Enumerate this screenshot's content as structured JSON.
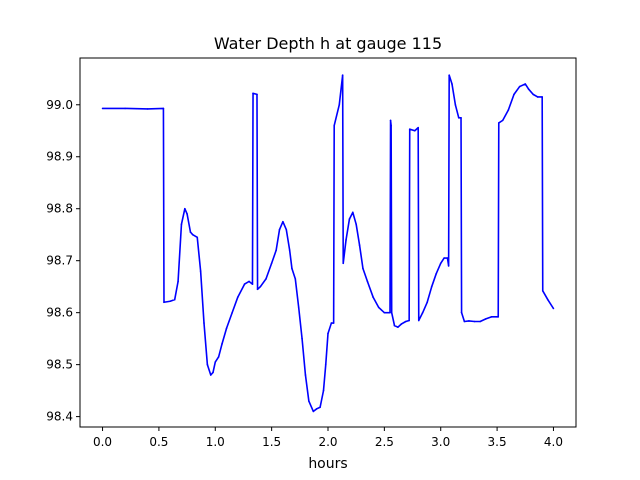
{
  "chart_data": {
    "type": "line",
    "title": "Water Depth h at gauge 115",
    "xlabel": "hours",
    "ylabel": "",
    "xlim": [
      -0.2,
      4.2
    ],
    "ylim": [
      98.38,
      99.09
    ],
    "xticks": [
      0.0,
      0.5,
      1.0,
      1.5,
      2.0,
      2.5,
      3.0,
      3.5,
      4.0
    ],
    "xtick_labels": [
      "0.0",
      "0.5",
      "1.0",
      "1.5",
      "2.0",
      "2.5",
      "3.0",
      "3.5",
      "4.0"
    ],
    "yticks": [
      98.4,
      98.5,
      98.6,
      98.7,
      98.8,
      98.9,
      99.0
    ],
    "ytick_labels": [
      "98.4",
      "98.5",
      "98.6",
      "98.7",
      "98.8",
      "98.9",
      "99.0"
    ],
    "grid": false,
    "line_color": "#0000ff",
    "series": [
      {
        "x": [
          0.0,
          0.2,
          0.4,
          0.54,
          0.545,
          0.6,
          0.64,
          0.67,
          0.7,
          0.73,
          0.75,
          0.78,
          0.8,
          0.84,
          0.87,
          0.9,
          0.93,
          0.96,
          0.98,
          1.0,
          1.03,
          1.06,
          1.1,
          1.15,
          1.2,
          1.26,
          1.3,
          1.33,
          1.335,
          1.37,
          1.375,
          1.4,
          1.45,
          1.5,
          1.54,
          1.57,
          1.6,
          1.63,
          1.66,
          1.68,
          1.71,
          1.74,
          1.77,
          1.8,
          1.83,
          1.87,
          1.9,
          1.93,
          1.96,
          1.98,
          2.0,
          2.03,
          2.05,
          2.055,
          2.1,
          2.13,
          2.135,
          2.16,
          2.19,
          2.22,
          2.25,
          2.28,
          2.31,
          2.35,
          2.4,
          2.45,
          2.5,
          2.55,
          2.555,
          2.56,
          2.565,
          2.59,
          2.62,
          2.65,
          2.69,
          2.72,
          2.725,
          2.77,
          2.8,
          2.805,
          2.84,
          2.88,
          2.92,
          2.96,
          3.0,
          3.03,
          3.06,
          3.07,
          3.075,
          3.1,
          3.13,
          3.16,
          3.18,
          3.185,
          3.21,
          3.25,
          3.3,
          3.35,
          3.4,
          3.45,
          3.5,
          3.51,
          3.515,
          3.55,
          3.6,
          3.65,
          3.7,
          3.75,
          3.78,
          3.82,
          3.86,
          3.9,
          3.905,
          3.95,
          4.0
        ],
        "values": [
          98.993,
          98.993,
          98.992,
          98.993,
          98.62,
          98.622,
          98.625,
          98.66,
          98.77,
          98.8,
          98.79,
          98.755,
          98.75,
          98.745,
          98.68,
          98.58,
          98.5,
          98.48,
          98.485,
          98.505,
          98.515,
          98.54,
          98.57,
          98.6,
          98.63,
          98.655,
          98.66,
          98.655,
          99.022,
          99.02,
          98.645,
          98.65,
          98.665,
          98.695,
          98.72,
          98.76,
          98.775,
          98.76,
          98.72,
          98.685,
          98.665,
          98.61,
          98.55,
          98.48,
          98.43,
          98.41,
          98.415,
          98.418,
          98.45,
          98.5,
          98.56,
          98.58,
          98.58,
          98.96,
          99.0,
          99.057,
          98.695,
          98.74,
          98.78,
          98.793,
          98.77,
          98.73,
          98.685,
          98.66,
          98.63,
          98.61,
          98.6,
          98.6,
          98.97,
          98.96,
          98.6,
          98.575,
          98.572,
          98.578,
          98.583,
          98.585,
          98.953,
          98.95,
          98.956,
          98.585,
          98.6,
          98.62,
          98.65,
          98.675,
          98.695,
          98.705,
          98.705,
          98.69,
          99.057,
          99.04,
          99.0,
          98.975,
          98.975,
          98.6,
          98.583,
          98.584,
          98.583,
          98.583,
          98.588,
          98.592,
          98.592,
          98.592,
          98.965,
          98.97,
          98.99,
          99.02,
          99.035,
          99.04,
          99.03,
          99.02,
          99.015,
          99.015,
          98.642,
          98.625,
          98.608
        ]
      }
    ]
  }
}
